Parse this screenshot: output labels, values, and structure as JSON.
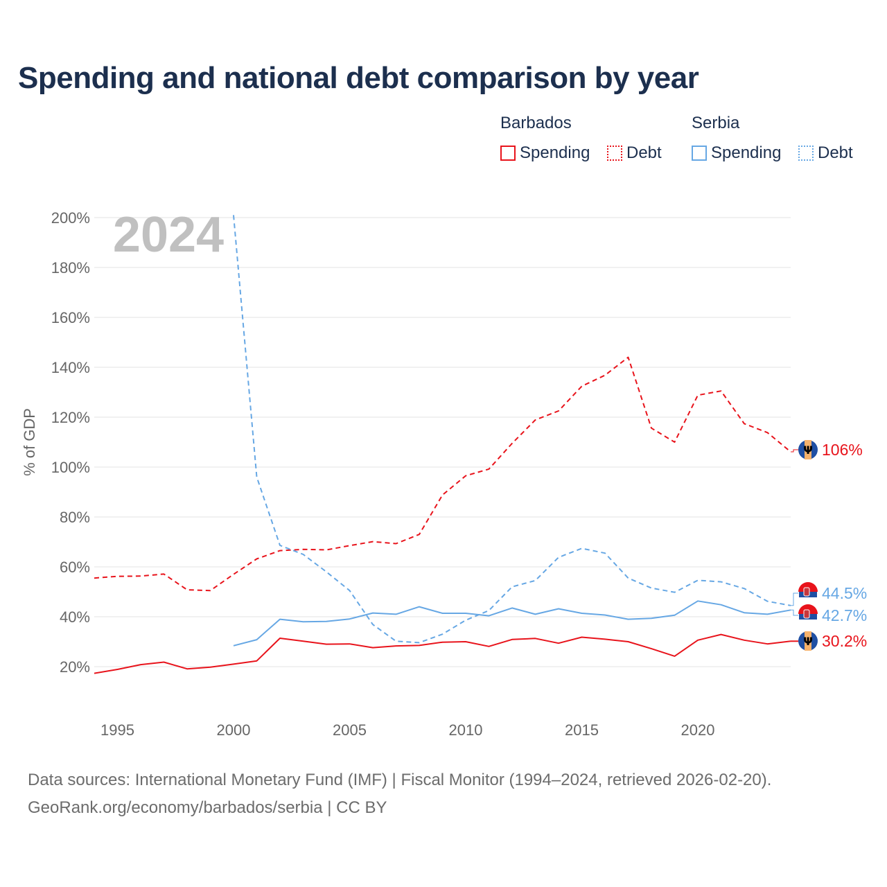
{
  "title": "Spending and national debt comparison by year",
  "legend": {
    "groups": [
      {
        "country": "Barbados",
        "items": [
          {
            "label": "Spending",
            "style": "solid"
          },
          {
            "label": "Debt",
            "style": "dotted"
          }
        ],
        "color": "#e8131b"
      },
      {
        "country": "Serbia",
        "items": [
          {
            "label": "Spending",
            "style": "solid"
          },
          {
            "label": "Debt",
            "style": "dotted"
          }
        ],
        "color": "#66a7e4"
      }
    ]
  },
  "year_watermark": "2024",
  "footer": {
    "line1": "Data sources: International Monetary Fund (IMF) | Fiscal Monitor (1994–2024, retrieved 2026-02-20).",
    "line2": "GeoRank.org/economy/barbados/serbia | CC BY"
  },
  "chart_data": {
    "type": "line",
    "title": "Spending and national debt comparison by year",
    "xlabel": "",
    "ylabel": "% of GDP",
    "xlim": [
      1994,
      2024
    ],
    "ylim": [
      0,
      200
    ],
    "x_ticks": [
      1995,
      2000,
      2005,
      2010,
      2015,
      2020
    ],
    "y_ticks": [
      20,
      40,
      60,
      80,
      100,
      120,
      140,
      160,
      180,
      200
    ],
    "y_tick_labels": [
      "20%",
      "40%",
      "60%",
      "80%",
      "100%",
      "120%",
      "140%",
      "160%",
      "180%",
      "200%"
    ],
    "grid": true,
    "series": [
      {
        "name": "Barbados Debt",
        "country": "Barbados",
        "metric": "Debt",
        "color": "#e8131b",
        "dash": "dashed",
        "x": [
          1994,
          1995,
          1996,
          1997,
          1998,
          1999,
          2000,
          2001,
          2002,
          2003,
          2004,
          2005,
          2006,
          2007,
          2008,
          2009,
          2010,
          2011,
          2012,
          2013,
          2014,
          2015,
          2016,
          2017,
          2018,
          2019,
          2020,
          2021,
          2022,
          2023,
          2024
        ],
        "y": [
          55.5,
          56.2,
          56.3,
          57.1,
          50.8,
          50.5,
          57.0,
          63.2,
          66.5,
          67.0,
          66.8,
          68.5,
          70.1,
          69.3,
          73.0,
          88.8,
          96.5,
          99.2,
          109.5,
          118.9,
          122.5,
          132.4,
          136.8,
          144.0,
          115.6,
          110.0,
          128.8,
          130.5,
          117.4,
          113.8,
          106.1
        ],
        "end_label": "106%"
      },
      {
        "name": "Barbados Spending",
        "country": "Barbados",
        "metric": "Spending",
        "color": "#e8131b",
        "dash": "solid",
        "x": [
          1994,
          1995,
          1996,
          1997,
          1998,
          1999,
          2000,
          2001,
          2002,
          2003,
          2004,
          2005,
          2006,
          2007,
          2008,
          2009,
          2010,
          2011,
          2012,
          2013,
          2014,
          2015,
          2016,
          2017,
          2018,
          2019,
          2020,
          2021,
          2022,
          2023,
          2024
        ],
        "y": [
          17.3,
          18.9,
          20.8,
          21.8,
          19.1,
          19.8,
          21.0,
          22.3,
          31.4,
          30.2,
          29.0,
          29.1,
          27.6,
          28.3,
          28.5,
          29.8,
          30.0,
          28.1,
          30.9,
          31.3,
          29.4,
          31.8,
          31.0,
          30.0,
          27.2,
          24.2,
          30.6,
          32.9,
          30.6,
          29.1,
          30.2
        ],
        "end_label": "30.2%"
      },
      {
        "name": "Serbia Debt",
        "country": "Serbia",
        "metric": "Debt",
        "color": "#66a7e4",
        "dash": "dashed",
        "x": [
          2000,
          2001,
          2002,
          2003,
          2004,
          2005,
          2006,
          2007,
          2008,
          2009,
          2010,
          2011,
          2012,
          2013,
          2014,
          2015,
          2016,
          2017,
          2018,
          2019,
          2020,
          2021,
          2022,
          2023,
          2024
        ],
        "y": [
          201.0,
          96.0,
          68.6,
          65.0,
          58.0,
          50.5,
          36.9,
          30.2,
          29.6,
          33.0,
          38.6,
          42.5,
          52.0,
          54.5,
          63.8,
          67.4,
          65.5,
          55.5,
          51.5,
          49.8,
          54.6,
          54.0,
          51.3,
          46.2,
          44.5
        ],
        "end_label": "44.5%"
      },
      {
        "name": "Serbia Spending",
        "country": "Serbia",
        "metric": "Spending",
        "color": "#66a7e4",
        "dash": "solid",
        "x": [
          2000,
          2001,
          2002,
          2003,
          2004,
          2005,
          2006,
          2007,
          2008,
          2009,
          2010,
          2011,
          2012,
          2013,
          2014,
          2015,
          2016,
          2017,
          2018,
          2019,
          2020,
          2021,
          2022,
          2023,
          2024
        ],
        "y": [
          28.4,
          30.8,
          39.0,
          38.0,
          38.1,
          39.1,
          41.5,
          41.0,
          44.0,
          41.4,
          41.4,
          40.4,
          43.5,
          41.0,
          43.2,
          41.4,
          40.7,
          39.0,
          39.4,
          40.6,
          46.3,
          44.8,
          41.6,
          41.0,
          42.7
        ],
        "end_label": "42.7%"
      }
    ]
  }
}
